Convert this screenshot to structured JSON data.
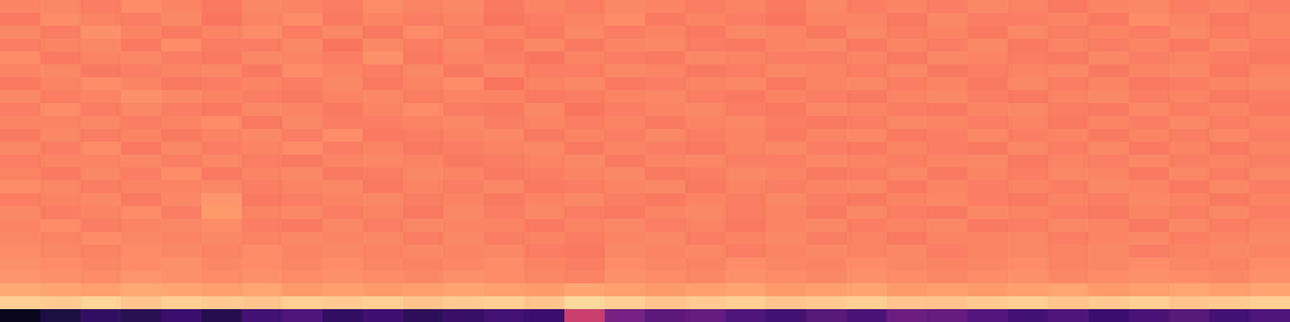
{
  "chart_data": {
    "type": "heatmap",
    "color": "magma",
    "tick_labels": false,
    "zlim": [
      0,
      1
    ],
    "cells": [
      [
        0.74,
        0.75,
        0.73,
        0.76,
        0.74,
        0.72,
        0.75,
        0.74,
        0.73,
        0.76,
        0.74,
        0.75,
        0.72,
        0.74,
        0.73,
        0.75,
        0.74,
        0.73,
        0.74,
        0.72,
        0.75,
        0.73,
        0.74,
        0.73,
        0.75,
        0.74,
        0.72,
        0.74,
        0.75,
        0.73,
        0.74,
        0.73
      ],
      [
        0.72,
        0.76,
        0.74,
        0.73,
        0.75,
        0.71,
        0.74,
        0.76,
        0.72,
        0.74,
        0.73,
        0.74,
        0.71,
        0.73,
        0.74,
        0.76,
        0.72,
        0.74,
        0.73,
        0.71,
        0.74,
        0.74,
        0.72,
        0.75,
        0.73,
        0.73,
        0.74,
        0.72,
        0.76,
        0.74,
        0.72,
        0.74
      ],
      [
        0.75,
        0.73,
        0.77,
        0.74,
        0.72,
        0.74,
        0.76,
        0.73,
        0.75,
        0.72,
        0.76,
        0.73,
        0.74,
        0.72,
        0.75,
        0.73,
        0.74,
        0.72,
        0.75,
        0.74,
        0.72,
        0.75,
        0.73,
        0.74,
        0.72,
        0.75,
        0.73,
        0.74,
        0.73,
        0.75,
        0.73,
        0.74
      ],
      [
        0.73,
        0.74,
        0.75,
        0.72,
        0.76,
        0.73,
        0.73,
        0.75,
        0.71,
        0.75,
        0.73,
        0.75,
        0.72,
        0.75,
        0.72,
        0.74,
        0.75,
        0.73,
        0.72,
        0.74,
        0.75,
        0.72,
        0.74,
        0.73,
        0.75,
        0.72,
        0.74,
        0.73,
        0.74,
        0.72,
        0.75,
        0.73
      ],
      [
        0.76,
        0.72,
        0.74,
        0.75,
        0.73,
        0.72,
        0.75,
        0.74,
        0.73,
        0.77,
        0.72,
        0.74,
        0.73,
        0.71,
        0.74,
        0.73,
        0.72,
        0.75,
        0.74,
        0.73,
        0.73,
        0.74,
        0.72,
        0.75,
        0.74,
        0.73,
        0.72,
        0.75,
        0.73,
        0.74,
        0.73,
        0.72
      ],
      [
        0.74,
        0.75,
        0.72,
        0.73,
        0.74,
        0.75,
        0.72,
        0.76,
        0.74,
        0.73,
        0.75,
        0.72,
        0.75,
        0.73,
        0.73,
        0.75,
        0.74,
        0.72,
        0.73,
        0.75,
        0.74,
        0.73,
        0.75,
        0.72,
        0.73,
        0.74,
        0.75,
        0.72,
        0.74,
        0.75,
        0.72,
        0.74
      ],
      [
        0.72,
        0.74,
        0.76,
        0.74,
        0.72,
        0.73,
        0.74,
        0.73,
        0.75,
        0.72,
        0.74,
        0.76,
        0.71,
        0.74,
        0.75,
        0.72,
        0.73,
        0.74,
        0.75,
        0.72,
        0.74,
        0.75,
        0.73,
        0.74,
        0.72,
        0.75,
        0.73,
        0.74,
        0.72,
        0.73,
        0.74,
        0.75
      ],
      [
        0.75,
        0.73,
        0.74,
        0.77,
        0.75,
        0.74,
        0.73,
        0.72,
        0.74,
        0.75,
        0.73,
        0.74,
        0.74,
        0.72,
        0.73,
        0.74,
        0.75,
        0.73,
        0.72,
        0.74,
        0.73,
        0.72,
        0.74,
        0.75,
        0.73,
        0.72,
        0.74,
        0.75,
        0.73,
        0.74,
        0.72,
        0.73
      ],
      [
        0.73,
        0.76,
        0.73,
        0.75,
        0.73,
        0.72,
        0.75,
        0.74,
        0.72,
        0.74,
        0.76,
        0.73,
        0.72,
        0.75,
        0.71,
        0.73,
        0.74,
        0.75,
        0.73,
        0.72,
        0.75,
        0.74,
        0.73,
        0.72,
        0.74,
        0.75,
        0.73,
        0.72,
        0.75,
        0.73,
        0.74,
        0.72
      ],
      [
        0.74,
        0.74,
        0.75,
        0.73,
        0.74,
        0.76,
        0.72,
        0.75,
        0.73,
        0.73,
        0.74,
        0.75,
        0.73,
        0.74,
        0.73,
        0.74,
        0.72,
        0.74,
        0.75,
        0.73,
        0.72,
        0.73,
        0.75,
        0.74,
        0.73,
        0.74,
        0.72,
        0.74,
        0.73,
        0.75,
        0.73,
        0.74
      ],
      [
        0.72,
        0.75,
        0.73,
        0.74,
        0.72,
        0.74,
        0.75,
        0.73,
        0.76,
        0.72,
        0.73,
        0.74,
        0.75,
        0.72,
        0.74,
        0.73,
        0.75,
        0.73,
        0.74,
        0.72,
        0.74,
        0.75,
        0.72,
        0.73,
        0.75,
        0.73,
        0.74,
        0.72,
        0.74,
        0.73,
        0.75,
        0.73
      ],
      [
        0.75,
        0.73,
        0.76,
        0.72,
        0.75,
        0.73,
        0.74,
        0.76,
        0.73,
        0.74,
        0.72,
        0.73,
        0.74,
        0.75,
        0.72,
        0.74,
        0.73,
        0.72,
        0.74,
        0.75,
        0.73,
        0.72,
        0.74,
        0.73,
        0.72,
        0.75,
        0.73,
        0.75,
        0.72,
        0.74,
        0.72,
        0.74
      ],
      [
        0.73,
        0.74,
        0.74,
        0.75,
        0.73,
        0.75,
        0.73,
        0.72,
        0.74,
        0.75,
        0.74,
        0.72,
        0.73,
        0.74,
        0.75,
        0.72,
        0.74,
        0.75,
        0.73,
        0.73,
        0.75,
        0.74,
        0.73,
        0.74,
        0.75,
        0.72,
        0.74,
        0.73,
        0.75,
        0.73,
        0.74,
        0.73
      ],
      [
        0.74,
        0.72,
        0.75,
        0.73,
        0.76,
        0.72,
        0.74,
        0.75,
        0.72,
        0.73,
        0.75,
        0.74,
        0.72,
        0.73,
        0.74,
        0.75,
        0.72,
        0.73,
        0.75,
        0.74,
        0.72,
        0.73,
        0.75,
        0.72,
        0.74,
        0.73,
        0.75,
        0.74,
        0.72,
        0.75,
        0.73,
        0.75
      ],
      [
        0.76,
        0.75,
        0.73,
        0.74,
        0.74,
        0.75,
        0.73,
        0.74,
        0.75,
        0.72,
        0.74,
        0.73,
        0.75,
        0.72,
        0.73,
        0.74,
        0.75,
        0.72,
        0.74,
        0.73,
        0.74,
        0.75,
        0.72,
        0.74,
        0.73,
        0.74,
        0.73,
        0.75,
        0.74,
        0.72,
        0.75,
        0.73
      ],
      [
        0.73,
        0.74,
        0.75,
        0.72,
        0.75,
        0.78,
        0.72,
        0.73,
        0.74,
        0.75,
        0.73,
        0.74,
        0.72,
        0.74,
        0.75,
        0.73,
        0.72,
        0.74,
        0.73,
        0.75,
        0.73,
        0.72,
        0.74,
        0.75,
        0.73,
        0.72,
        0.74,
        0.73,
        0.75,
        0.74,
        0.72,
        0.74
      ],
      [
        0.75,
        0.73,
        0.74,
        0.76,
        0.73,
        0.79,
        0.74,
        0.75,
        0.73,
        0.74,
        0.72,
        0.75,
        0.73,
        0.75,
        0.73,
        0.72,
        0.74,
        0.75,
        0.73,
        0.74,
        0.72,
        0.75,
        0.73,
        0.72,
        0.75,
        0.74,
        0.73,
        0.72,
        0.74,
        0.73,
        0.75,
        0.73
      ],
      [
        0.74,
        0.76,
        0.73,
        0.74,
        0.75,
        0.76,
        0.73,
        0.72,
        0.75,
        0.73,
        0.75,
        0.74,
        0.74,
        0.72,
        0.74,
        0.75,
        0.73,
        0.74,
        0.72,
        0.74,
        0.75,
        0.73,
        0.74,
        0.75,
        0.72,
        0.73,
        0.75,
        0.74,
        0.72,
        0.75,
        0.73,
        0.74
      ],
      [
        0.75,
        0.74,
        0.76,
        0.75,
        0.74,
        0.75,
        0.74,
        0.75,
        0.74,
        0.75,
        0.73,
        0.75,
        0.73,
        0.74,
        0.73,
        0.74,
        0.75,
        0.73,
        0.74,
        0.75,
        0.73,
        0.74,
        0.72,
        0.74,
        0.74,
        0.75,
        0.73,
        0.74,
        0.75,
        0.73,
        0.74,
        0.75
      ],
      [
        0.76,
        0.75,
        0.74,
        0.76,
        0.75,
        0.74,
        0.76,
        0.74,
        0.75,
        0.74,
        0.75,
        0.74,
        0.75,
        0.73,
        0.72,
        0.75,
        0.74,
        0.75,
        0.73,
        0.74,
        0.75,
        0.74,
        0.75,
        0.73,
        0.74,
        0.75,
        0.74,
        0.75,
        0.73,
        0.74,
        0.75,
        0.74
      ],
      [
        0.77,
        0.76,
        0.75,
        0.76,
        0.77,
        0.75,
        0.76,
        0.75,
        0.76,
        0.75,
        0.74,
        0.75,
        0.76,
        0.74,
        0.73,
        0.76,
        0.75,
        0.74,
        0.76,
        0.75,
        0.74,
        0.76,
        0.75,
        0.74,
        0.75,
        0.76,
        0.74,
        0.75,
        0.76,
        0.75,
        0.74,
        0.76
      ],
      [
        0.78,
        0.77,
        0.76,
        0.78,
        0.77,
        0.76,
        0.77,
        0.76,
        0.77,
        0.76,
        0.75,
        0.77,
        0.76,
        0.75,
        0.74,
        0.77,
        0.76,
        0.75,
        0.77,
        0.76,
        0.75,
        0.77,
        0.76,
        0.75,
        0.76,
        0.77,
        0.75,
        0.76,
        0.77,
        0.76,
        0.75,
        0.77
      ],
      [
        0.82,
        0.81,
        0.8,
        0.82,
        0.81,
        0.8,
        0.81,
        0.79,
        0.8,
        0.79,
        0.8,
        0.81,
        0.8,
        0.79,
        0.81,
        0.8,
        0.79,
        0.8,
        0.81,
        0.79,
        0.8,
        0.81,
        0.79,
        0.8,
        0.79,
        0.8,
        0.81,
        0.79,
        0.8,
        0.81,
        0.8,
        0.81
      ],
      [
        0.9,
        0.89,
        0.91,
        0.88,
        0.9,
        0.89,
        0.88,
        0.9,
        0.89,
        0.9,
        0.88,
        0.89,
        0.9,
        0.88,
        0.92,
        0.9,
        0.88,
        0.89,
        0.9,
        0.88,
        0.89,
        0.9,
        0.88,
        0.87,
        0.89,
        0.9,
        0.88,
        0.89,
        0.9,
        0.88,
        0.89,
        0.9
      ],
      [
        0.05,
        0.12,
        0.18,
        0.15,
        0.2,
        0.14,
        0.22,
        0.25,
        0.18,
        0.21,
        0.16,
        0.19,
        0.23,
        0.2,
        0.55,
        0.35,
        0.28,
        0.3,
        0.25,
        0.22,
        0.27,
        0.24,
        0.32,
        0.3,
        0.26,
        0.22,
        0.25,
        0.2,
        0.24,
        0.27,
        0.22,
        0.25
      ]
    ]
  }
}
